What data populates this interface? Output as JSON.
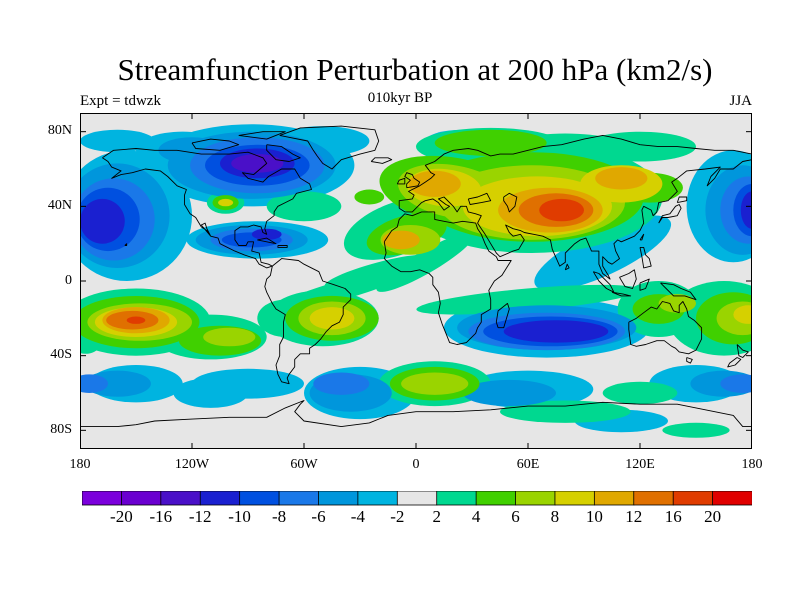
{
  "figure": {
    "title": "Streamfunction Perturbation at 200 hPa (km2/s)",
    "left_string": "Expt = tdwzk",
    "center_string": "010kyr BP",
    "right_string": "JJA"
  },
  "map": {
    "projection": "cylindrical-equidistant",
    "lat_ticks": [
      "80N",
      "40N",
      "0",
      "40S",
      "80S"
    ],
    "lon_ticks": [
      "180",
      "120W",
      "60W",
      "0",
      "60E",
      "120E",
      "180"
    ],
    "fill_colors_by_level": {
      "-22": "#7b00dc",
      "-18": "#6a00d0",
      "-14": "#4a10c8",
      "-11": "#1a20d0",
      "-9": "#0050e0",
      "-7": "#1a78e8",
      "-5": "#0096dc",
      "-3": "#00b4e0",
      "0": "#e6e6e6",
      "3": "#00d890",
      "5": "#40d000",
      "7": "#9ad400",
      "9": "#d6d000",
      "11": "#e0a800",
      "14": "#e07000",
      "18": "#e03c00",
      "22": "#e00000"
    }
  },
  "colorbar": {
    "colors": [
      "#7b00dc",
      "#6a00d0",
      "#4a10c8",
      "#1a20d0",
      "#0050e0",
      "#1a78e8",
      "#0096dc",
      "#00b4e0",
      "#e6e6e6",
      "#00d890",
      "#40d000",
      "#9ad400",
      "#d6d000",
      "#e0a800",
      "#e07000",
      "#e03c00",
      "#e00000"
    ],
    "labels": [
      "-20",
      "-16",
      "-12",
      "-10",
      "-8",
      "-6",
      "-4",
      "-2",
      "2",
      "4",
      "6",
      "8",
      "10",
      "12",
      "16",
      "20"
    ]
  }
}
